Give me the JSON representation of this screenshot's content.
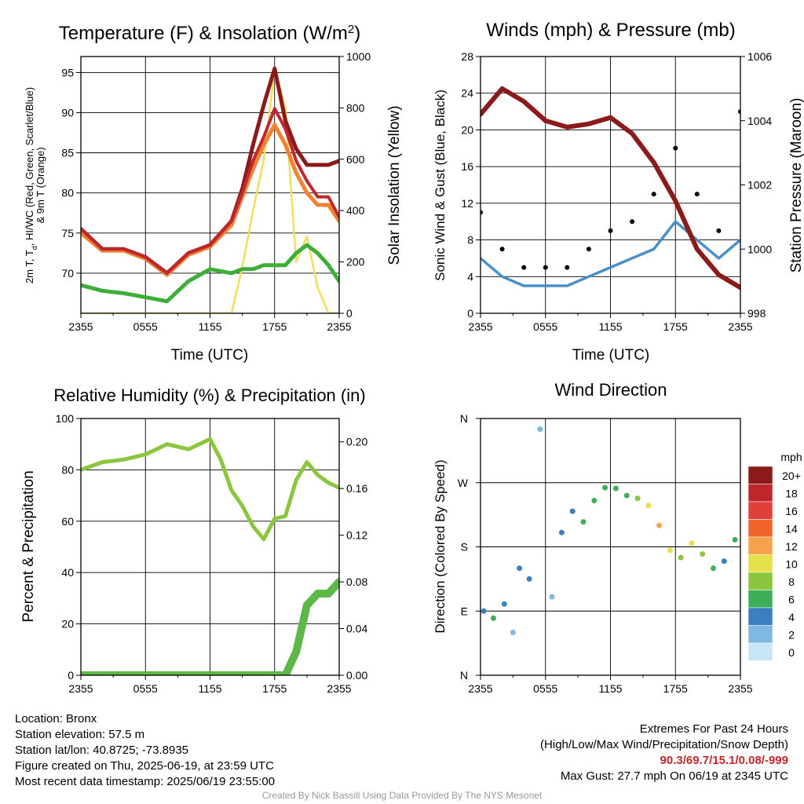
{
  "colors": {
    "temp": "#c0272d",
    "dewpoint": "#3fae39",
    "heat_index": "#8b1a1a",
    "temp9m": "#f08232",
    "solar": "#f4dc5c",
    "wind": "#4a90c8",
    "gust": "#000000",
    "pressure": "#8b1a1a",
    "rh": "#8cc63f",
    "precip": "#5db848",
    "extremes": "#c0272d",
    "credit": "#999999"
  },
  "charts": {
    "temperature": {
      "title_main": "Temperature (F) & Insolation (W/m",
      "title_sup": "2",
      "title_end": ")",
      "ylabel_line1": "2m T, T",
      "ylabel_sub": "d",
      "ylabel_line1_end": ", HI/WC (Red, Green, Scarlet/Blue)",
      "ylabel_line2": "& 9m T (Orange)",
      "ylabel_right": "Solar Insolation (Yellow)",
      "xlabel": "Time (UTC)"
    },
    "winds": {
      "title": "Winds (mph) & Pressure (mb)",
      "ylabel_left": "Sonic Wind & Gust (Blue, Black)",
      "ylabel_right": "Station Pressure (Maroon)",
      "xlabel": "Time (UTC)"
    },
    "humidity": {
      "title": "Relative Humidity (%) & Precipitation (in)",
      "ylabel_left": "Percent & Precipitation"
    },
    "direction": {
      "title": "Wind Direction",
      "ylabel_left": "Direction (Colored By Speed)",
      "legend_title": "mph",
      "legend_labels": [
        "20+",
        "18",
        "16",
        "14",
        "12",
        "10",
        "8",
        "6",
        "4",
        "2",
        "0"
      ],
      "legend_colors": [
        "#8b1a1a",
        "#c0272d",
        "#e0403a",
        "#f0642c",
        "#f6a24a",
        "#e6e04a",
        "#8cc63f",
        "#3fae5a",
        "#3a7fc0",
        "#7fb8e0",
        "#c8e6f8"
      ]
    }
  },
  "info": {
    "location": "Location: Bronx",
    "elevation": "Station elevation: 57.5 m",
    "latlon": "Station lat/lon: 40.8725; -73.8935",
    "created": "Figure created on Thu, 2025-06-19, at 23:59 UTC",
    "recent": "Most recent data timestamp: 2025/06/19 23:55:00"
  },
  "extremes": {
    "heading": "Extremes For Past 24 Hours",
    "subheading": "(High/Low/Max Wind/Precipitation/Snow Depth)",
    "values": "90.3/69.7/15.1/0.08/-999",
    "max_gust": "Max Gust: 27.7 mph On 06/19 at 2345 UTC"
  },
  "credit": "Created By Nick Bassill Using Data Provided By The NYS Mesonet",
  "chart_data": [
    {
      "type": "line",
      "title": "Temperature (F) & Insolation (W/m2)",
      "xlabel": "Time (UTC)",
      "ylabel": "2m T, Td, HI/WC (Red, Green, Scarlet/Blue) & 9m T (Orange)",
      "ylabel_right": "Solar Insolation (Yellow)",
      "x_ticks": [
        "2355",
        "0555",
        "1155",
        "1755",
        "2355"
      ],
      "x": [
        0,
        2,
        4,
        6,
        8,
        10,
        12,
        14,
        15,
        16,
        17,
        18,
        19,
        20,
        21,
        22,
        23,
        24
      ],
      "ylim": [
        65,
        97
      ],
      "y_ticks": [
        70,
        75,
        80,
        85,
        90,
        95
      ],
      "ylim_right": [
        0,
        1000
      ],
      "y_ticks_right": [
        0,
        200,
        400,
        600,
        800,
        1000
      ],
      "series": [
        {
          "name": "2m T",
          "axis": "left",
          "values": [
            75.5,
            73.0,
            73.0,
            72.0,
            70.0,
            72.5,
            73.5,
            76.5,
            80.0,
            84.0,
            87.0,
            90.5,
            88.0,
            84.0,
            81.5,
            79.5,
            79.5,
            77.0
          ]
        },
        {
          "name": "Td",
          "axis": "left",
          "values": [
            68.5,
            67.8,
            67.5,
            67.0,
            66.5,
            69.0,
            70.5,
            70.0,
            70.5,
            70.5,
            71.0,
            71.0,
            71.0,
            72.5,
            73.5,
            72.5,
            71.0,
            69.0
          ]
        },
        {
          "name": "HI/WC",
          "axis": "left",
          "values": [
            75.5,
            73.0,
            73.0,
            72.0,
            70.0,
            72.5,
            73.5,
            76.5,
            80.5,
            86.0,
            91.0,
            95.5,
            89.0,
            85.5,
            83.5,
            83.5,
            83.5,
            84.0
          ]
        },
        {
          "name": "9m T",
          "axis": "left",
          "values": [
            75.0,
            72.8,
            72.8,
            71.8,
            69.8,
            72.3,
            73.3,
            76.0,
            79.5,
            83.0,
            86.0,
            88.5,
            86.0,
            82.5,
            80.0,
            78.5,
            78.5,
            76.5
          ]
        },
        {
          "name": "Solar Insolation",
          "axis": "right",
          "values": [
            0,
            0,
            0,
            0,
            0,
            0,
            0,
            0,
            180,
            400,
            600,
            950,
            800,
            200,
            300,
            100,
            0,
            0
          ]
        }
      ]
    },
    {
      "type": "line",
      "title": "Winds (mph) & Pressure (mb)",
      "xlabel": "Time (UTC)",
      "ylabel": "Sonic Wind & Gust (Blue, Black)",
      "ylabel_right": "Station Pressure (Maroon)",
      "x_ticks": [
        "2355",
        "0555",
        "1155",
        "1755",
        "2355"
      ],
      "x": [
        0,
        2,
        4,
        6,
        8,
        10,
        12,
        14,
        16,
        18,
        20,
        22,
        24
      ],
      "ylim": [
        0,
        28
      ],
      "y_ticks": [
        0,
        4,
        8,
        12,
        16,
        20,
        24,
        28
      ],
      "ylim_right": [
        998,
        1006
      ],
      "y_ticks_right": [
        998,
        1000,
        1002,
        1004,
        1006
      ],
      "series": [
        {
          "name": "Sonic Wind",
          "axis": "left",
          "values": [
            6,
            4,
            3,
            3,
            3,
            4,
            5,
            6,
            7,
            10,
            8,
            6,
            8
          ]
        },
        {
          "name": "Gust",
          "axis": "left",
          "values": [
            11,
            7,
            5,
            5,
            5,
            7,
            9,
            10,
            13,
            18,
            13,
            9,
            22
          ]
        },
        {
          "name": "Station Pressure",
          "axis": "right",
          "values": [
            1004.2,
            1005.0,
            1004.6,
            1004.0,
            1003.8,
            1003.9,
            1004.1,
            1003.6,
            1002.7,
            1001.5,
            1000.0,
            999.2,
            998.8
          ]
        }
      ]
    },
    {
      "type": "line",
      "title": "Relative Humidity (%) & Precipitation (in)",
      "ylabel": "Percent & Precipitation",
      "x_ticks": [
        "2355",
        "0555",
        "1155",
        "1755",
        "2355"
      ],
      "x": [
        0,
        2,
        4,
        6,
        8,
        10,
        12,
        13,
        14,
        15,
        16,
        17,
        18,
        19,
        20,
        21,
        22,
        23,
        24
      ],
      "ylim": [
        0,
        100
      ],
      "y_ticks": [
        0,
        20,
        40,
        60,
        80,
        100
      ],
      "ylim_right": [
        0,
        0.22
      ],
      "y_ticks_right": [
        0.0,
        0.04,
        0.08,
        0.12,
        0.16,
        0.2
      ],
      "series": [
        {
          "name": "Relative Humidity",
          "axis": "left",
          "values": [
            80,
            83,
            84,
            86,
            90,
            88,
            92,
            84,
            72,
            66,
            58,
            53,
            61,
            62,
            76,
            83,
            78,
            75,
            73
          ]
        },
        {
          "name": "Precipitation",
          "axis": "right",
          "values": [
            0,
            0,
            0,
            0,
            0,
            0,
            0,
            0,
            0,
            0,
            0,
            0,
            0,
            0,
            0.02,
            0.06,
            0.07,
            0.07,
            0.08
          ]
        }
      ]
    },
    {
      "type": "scatter",
      "title": "Wind Direction",
      "ylabel": "Direction (Colored By Speed)",
      "x_ticks": [
        "2355",
        "0555",
        "1155",
        "1755",
        "2355"
      ],
      "y_ticks": [
        "N",
        "E",
        "S",
        "W",
        "N"
      ],
      "ylim": [
        0,
        360
      ],
      "color_scale_mph": [
        0,
        2,
        4,
        6,
        8,
        10,
        12,
        14,
        16,
        18,
        20
      ],
      "x": [
        0.3,
        1.2,
        2.2,
        3.0,
        3.6,
        4.5,
        5.5,
        6.6,
        7.5,
        8.5,
        9.5,
        10.5,
        11.5,
        12.5,
        13.5,
        14.5,
        15.5,
        16.5,
        17.5,
        18.5,
        19.5,
        20.5,
        21.5,
        22.5,
        23.5
      ],
      "y": [
        90,
        80,
        100,
        60,
        150,
        135,
        345,
        110,
        200,
        230,
        215,
        245,
        263,
        262,
        252,
        248,
        238,
        210,
        175,
        165,
        185,
        170,
        150,
        160,
        190
      ],
      "speed_mph": [
        4,
        6,
        3,
        2,
        3,
        4,
        1,
        2,
        4,
        4,
        5,
        5,
        5,
        6,
        6,
        8,
        10,
        12,
        10,
        8,
        9,
        8,
        6,
        4,
        5
      ]
    }
  ]
}
